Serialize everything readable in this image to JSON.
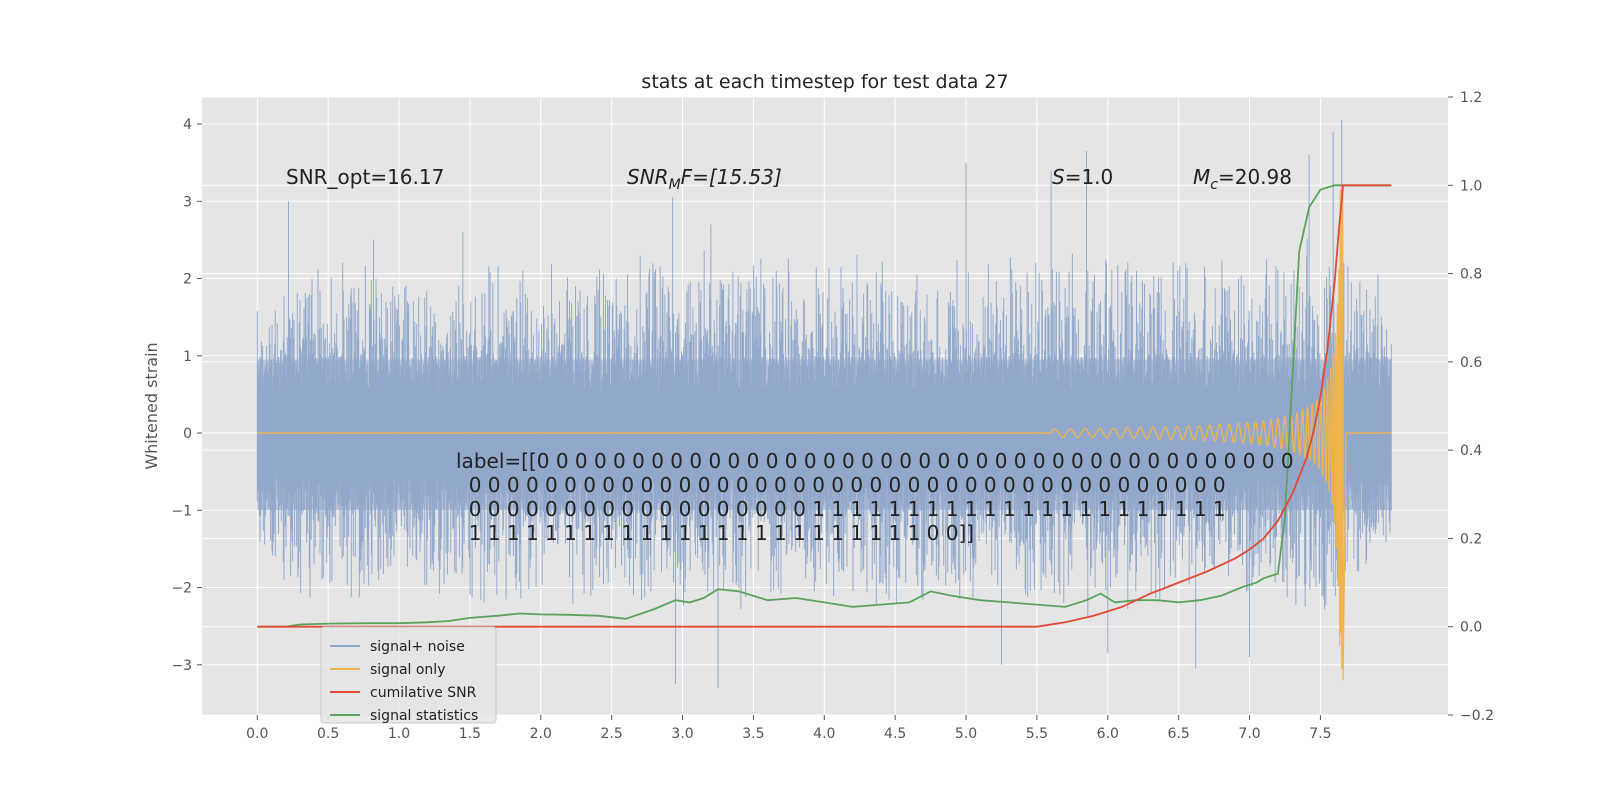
{
  "chart_data": {
    "type": "line",
    "title": "stats at each timestep for test data 27",
    "ylabel": "Whitened strain",
    "xlabel": "",
    "xlim": [
      -0.39,
      8.4
    ],
    "ylim": [
      -3.65,
      4.35
    ],
    "y2lim": [
      -0.2,
      1.2
    ],
    "x_ticks": [
      "0.0",
      "0.5",
      "1.0",
      "1.5",
      "2.0",
      "2.5",
      "3.0",
      "3.5",
      "4.0",
      "4.5",
      "5.0",
      "5.5",
      "6.0",
      "6.5",
      "7.0",
      "7.5"
    ],
    "y_ticks": [
      "−3",
      "−2",
      "−1",
      "0",
      "1",
      "2",
      "3",
      "4"
    ],
    "y2_ticks": [
      "−0.2",
      "0.0",
      "0.2",
      "0.4",
      "0.6",
      "0.8",
      "1.0",
      "1.2"
    ],
    "grid": true,
    "legend_position": "lower-left",
    "annotations": {
      "snr_opt": "SNR_opt=16.17",
      "snr_mf_name": "SNR",
      "snr_mf_sub": "M",
      "snr_mf_rest": "F=[15.53]",
      "s_name": "S",
      "s_rest": "=1.0",
      "mc_name": "M",
      "mc_sub": "c",
      "mc_rest": "=20.98"
    },
    "label_lines": [
      "label=[[0 0 0 0 0 0 0 0 0 0 0 0 0 0 0 0 0 0 0 0 0 0 0 0 0 0 0 0 0 0 0 0 0 0 0 0 0 0 0 0",
      "  0 0 0 0 0 0 0 0 0 0 0 0 0 0 0 0 0 0 0 0 0 0 0 0 0 0 0 0 0 0 0 0 0 0 0 0 0 0 0 0",
      "  0 0 0 0 0 0 0 0 0 0 0 0 0 0 0 0 0 0 1 1 1 1 1 1 1 1 1 1 1 1 1 1 1 1 1 1 1 1 1 1",
      "  1 1 1 1 1 1 1 1 1 1 1 1 1 1 1 1 1 1 1 1 1 1 1 1 0 0]]"
    ],
    "series": [
      {
        "name": "signal+ noise",
        "color": "#8fa6cb",
        "axis": "left",
        "envelope": {
          "x": [
            0.0,
            0.5,
            1.0,
            1.5,
            2.0,
            2.5,
            3.0,
            3.5,
            4.0,
            4.5,
            5.0,
            5.5,
            6.0,
            6.5,
            7.0,
            7.5,
            8.0
          ],
          "upper": [
            1.8,
            2.4,
            2.2,
            2.3,
            2.2,
            2.3,
            2.5,
            2.4,
            2.3,
            2.4,
            2.3,
            2.5,
            2.5,
            2.3,
            2.4,
            2.6,
            2.0
          ],
          "lower": [
            -1.9,
            -2.3,
            -2.2,
            -2.4,
            -2.3,
            -2.2,
            -2.4,
            -2.3,
            -2.2,
            -2.4,
            -2.3,
            -2.4,
            -2.4,
            -2.3,
            -2.3,
            -2.5,
            -1.5
          ],
          "peaks_x": [
            0.22,
            0.82,
            1.45,
            2.93,
            3.2,
            5.0,
            5.6,
            5.85,
            7.42,
            7.59,
            7.65,
            2.95,
            3.25,
            5.25,
            6.0,
            6.62,
            7.0
          ],
          "peaks_y": [
            3.0,
            2.5,
            2.6,
            3.05,
            2.7,
            3.5,
            3.4,
            3.65,
            3.6,
            3.9,
            4.05,
            -3.25,
            -3.3,
            -3.0,
            -2.85,
            -3.05,
            -2.9
          ]
        }
      },
      {
        "name": "signal only",
        "color": "#f0b44c",
        "axis": "left",
        "chirp": {
          "x_start": 5.6,
          "x_merge": 7.66,
          "x_end": 8.0,
          "peak_amp": 3.2
        }
      },
      {
        "name": "cumilative SNR",
        "color": "#e24a33",
        "axis": "right",
        "x": [
          0.0,
          1.0,
          2.0,
          3.0,
          4.0,
          5.0,
          5.5,
          5.7,
          5.9,
          6.1,
          6.3,
          6.5,
          6.7,
          6.9,
          7.0,
          7.1,
          7.2,
          7.3,
          7.4,
          7.45,
          7.5,
          7.55,
          7.6,
          7.63,
          7.66,
          7.7,
          8.0
        ],
        "y": [
          0.0,
          0.0,
          0.0,
          0.0,
          0.0,
          0.0,
          0.0,
          0.01,
          0.025,
          0.045,
          0.075,
          0.1,
          0.125,
          0.155,
          0.175,
          0.2,
          0.24,
          0.3,
          0.38,
          0.44,
          0.52,
          0.63,
          0.78,
          0.9,
          1.0,
          1.0,
          1.0
        ]
      },
      {
        "name": "signal statistics",
        "color": "#5ba35b",
        "axis": "right",
        "x": [
          0.0,
          0.2,
          0.3,
          0.5,
          0.8,
          1.0,
          1.2,
          1.35,
          1.5,
          1.7,
          1.85,
          2.0,
          2.2,
          2.4,
          2.6,
          2.8,
          2.95,
          3.05,
          3.15,
          3.25,
          3.4,
          3.6,
          3.8,
          4.0,
          4.2,
          4.4,
          4.6,
          4.75,
          4.9,
          5.1,
          5.3,
          5.5,
          5.7,
          5.85,
          5.95,
          6.05,
          6.2,
          6.35,
          6.5,
          6.65,
          6.8,
          6.95,
          7.05,
          7.1,
          7.2,
          7.25,
          7.3,
          7.35,
          7.42,
          7.5,
          7.6,
          7.7,
          8.0
        ],
        "y": [
          0.0,
          0.0,
          0.005,
          0.007,
          0.008,
          0.008,
          0.01,
          0.013,
          0.02,
          0.025,
          0.03,
          0.028,
          0.027,
          0.025,
          0.018,
          0.04,
          0.06,
          0.055,
          0.065,
          0.085,
          0.08,
          0.06,
          0.065,
          0.055,
          0.045,
          0.05,
          0.055,
          0.08,
          0.07,
          0.06,
          0.055,
          0.05,
          0.045,
          0.06,
          0.075,
          0.055,
          0.06,
          0.06,
          0.055,
          0.06,
          0.07,
          0.09,
          0.1,
          0.11,
          0.12,
          0.25,
          0.55,
          0.85,
          0.95,
          0.99,
          1.0,
          1.0,
          1.0
        ]
      }
    ]
  }
}
